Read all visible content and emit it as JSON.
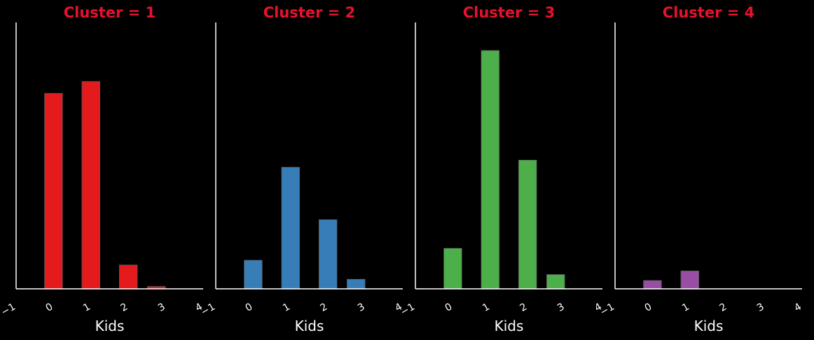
{
  "chart_data": {
    "type": "bar",
    "title_color": "#e8112d",
    "axis_color": "#ffffff",
    "background": "#000000",
    "xlim": [
      -1,
      4
    ],
    "xticks": [
      "−1",
      "0",
      "1",
      "2",
      "3",
      "4"
    ],
    "tick_values": [
      -1,
      0,
      1,
      2,
      3,
      4
    ],
    "xlabel": "Kids",
    "ylim": [
      0,
      1
    ],
    "panels": [
      {
        "title": "Cluster = 1",
        "color": "#e41a1c",
        "bars": [
          {
            "x": 0,
            "value": 0.82
          },
          {
            "x": 1,
            "value": 0.87
          },
          {
            "x": 2,
            "value": 0.1
          },
          {
            "x": 2.75,
            "value": 0.01
          }
        ]
      },
      {
        "title": "Cluster = 2",
        "color": "#377eb8",
        "bars": [
          {
            "x": 0,
            "value": 0.12
          },
          {
            "x": 1,
            "value": 0.51
          },
          {
            "x": 2,
            "value": 0.29
          },
          {
            "x": 2.75,
            "value": 0.04
          }
        ]
      },
      {
        "title": "Cluster = 3",
        "color": "#4daf4a",
        "bars": [
          {
            "x": 0,
            "value": 0.17
          },
          {
            "x": 1,
            "value": 1.0
          },
          {
            "x": 2,
            "value": 0.54
          },
          {
            "x": 2.75,
            "value": 0.06
          }
        ]
      },
      {
        "title": "Cluster = 4",
        "color": "#984ea3",
        "bars": [
          {
            "x": 0,
            "value": 0.035
          },
          {
            "x": 1,
            "value": 0.075
          }
        ]
      }
    ]
  }
}
